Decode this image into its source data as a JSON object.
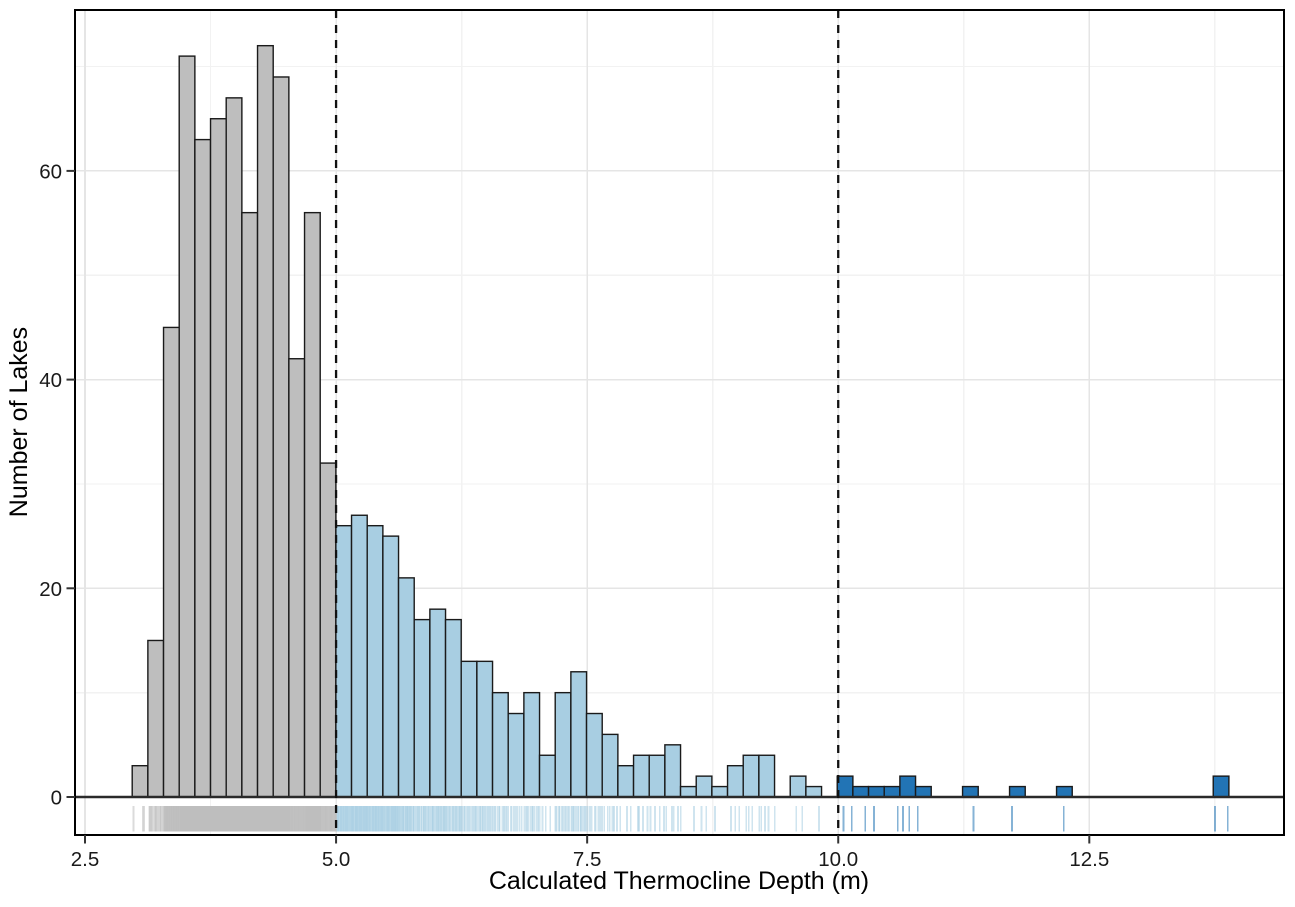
{
  "chart_data": {
    "type": "bar",
    "subtype": "histogram",
    "title": "",
    "xlabel": "Calculated Thermocline Depth (m)",
    "ylabel": "Number of Lakes",
    "xlim": [
      2.4,
      14.45
    ],
    "ylim": [
      0,
      75
    ],
    "grid": "major+minor, light gray on white, theme_bw style",
    "legend": false,
    "bin_start": 2.97,
    "bin_width": 0.156,
    "counts": [
      3,
      15,
      45,
      71,
      63,
      65,
      67,
      56,
      72,
      69,
      42,
      56,
      32,
      26,
      27,
      26,
      25,
      21,
      17,
      18,
      17,
      13,
      13,
      10,
      8,
      10,
      4,
      10,
      12,
      8,
      6,
      3,
      4,
      4,
      5,
      1,
      2,
      1,
      3,
      4,
      4,
      0,
      2,
      1,
      0,
      2,
      1,
      1,
      1,
      2,
      1,
      0,
      0,
      1,
      0,
      0,
      1,
      0,
      0,
      1,
      0,
      0,
      0,
      0,
      0,
      0,
      0,
      0,
      0,
      2
    ],
    "segments": [
      {
        "name": "depth-under-5m",
        "from": 2.97,
        "to": 4.99,
        "fill": "#BEBEBE"
      },
      {
        "name": "depth-5-to-10m",
        "from": 4.99,
        "to": 9.98,
        "fill": "#A8CEE2"
      },
      {
        "name": "depth-over-10m",
        "from": 9.98,
        "to": 13.9,
        "fill": "#2274B5"
      }
    ],
    "vlines": [
      {
        "x": 5.0,
        "style": "dashed",
        "color": "#111111"
      },
      {
        "x": 10.0,
        "style": "dashed",
        "color": "#111111"
      }
    ],
    "rug": {
      "present": true,
      "position": "below x axis",
      "opacity": 0.55
    },
    "x_axis": {
      "title": "Calculated Thermocline Depth (m)",
      "ticks": [
        {
          "value": 2.5,
          "label": "2.5"
        },
        {
          "value": 5.0,
          "label": "5.0"
        },
        {
          "value": 7.5,
          "label": "7.5"
        },
        {
          "value": 10.0,
          "label": "10.0"
        },
        {
          "value": 12.5,
          "label": "12.5"
        }
      ],
      "minor_ticks": [
        3.75,
        6.25,
        8.75,
        11.25,
        13.75
      ]
    },
    "y_axis": {
      "title": "Number of Lakes",
      "ticks": [
        {
          "value": 0,
          "label": "0"
        },
        {
          "value": 20,
          "label": "20"
        },
        {
          "value": 40,
          "label": "40"
        },
        {
          "value": 60,
          "label": "60"
        }
      ],
      "minor_ticks": [
        10,
        30,
        50,
        70
      ]
    },
    "style": {
      "bar_outline": "#1a1a1a",
      "panel_border": "#000000",
      "zero_line": "#2a2a2a",
      "grid_major": "#e5e5e5",
      "grid_minor": "#f2f2f2",
      "background": "#ffffff"
    }
  }
}
